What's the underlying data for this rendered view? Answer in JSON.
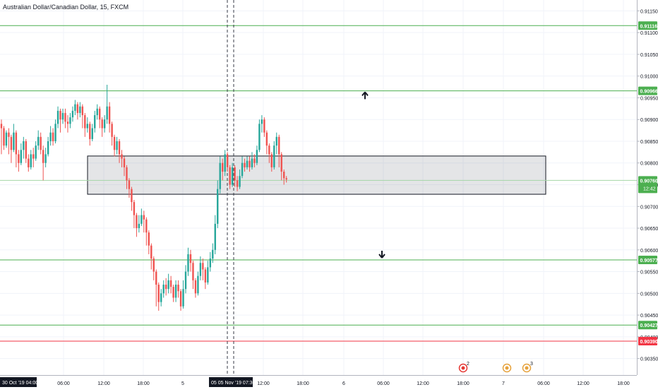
{
  "chart_data": {
    "type": "candlestick",
    "title": "Australian Dollar/Canadian Dollar, 15, FXCM",
    "ylim": [
      0.90312,
      0.91175
    ],
    "y_ticks": [
      "0.91150",
      "0.91100",
      "0.91050",
      "0.91000",
      "0.90950",
      "0.90900",
      "0.90850",
      "0.90800",
      "0.90750",
      "0.90700",
      "0.90650",
      "0.90600",
      "0.90550",
      "0.90500",
      "0.90450",
      "0.90400",
      "0.90350"
    ],
    "x_ticks": [
      "06:00",
      "12:00",
      "18:00",
      "5",
      "12:00",
      "18:00",
      "6",
      "06:00",
      "12:00",
      "18:00",
      "7",
      "06:00",
      "12:00",
      "18:00"
    ],
    "x_left_label": "30 Oct '19   04:00",
    "x_crosshair_label": "05   05 Nov '19   07:30",
    "levels": [
      {
        "value": 0.91116,
        "label": "0.91116",
        "color": "#4caf50"
      },
      {
        "value": 0.90966,
        "label": "0.90966",
        "color": "#4caf50"
      },
      {
        "value": 0.90577,
        "label": "0.90577",
        "color": "#4caf50"
      },
      {
        "value": 0.90427,
        "label": "0.90427",
        "color": "#4caf50"
      },
      {
        "value": 0.9039,
        "label": "0.90390",
        "color": "#f23645"
      }
    ],
    "current_price": {
      "value": 0.9076,
      "label": "0.90760",
      "countdown": "12:42",
      "color": "#4caf50"
    },
    "zone": {
      "top": 0.90816,
      "bottom": 0.90728
    },
    "arrows": [
      {
        "direction": "up",
        "value": 0.90955
      },
      {
        "direction": "down",
        "value": 0.9059
      }
    ],
    "events": [
      {
        "count": "2",
        "color": "#e53935"
      },
      {
        "count": "",
        "color": "#e6a23c"
      },
      {
        "count": "3",
        "color": "#e6a23c"
      }
    ],
    "up_color": "#26a69a",
    "down_color": "#ef5350",
    "candles": [
      [
        0.9089,
        0.9088,
        0.909,
        0.9082
      ],
      [
        0.9088,
        0.9084,
        0.90885,
        0.9083
      ],
      [
        0.9084,
        0.9087,
        0.90875,
        0.90835
      ],
      [
        0.9087,
        0.9086,
        0.9088,
        0.9082
      ],
      [
        0.9086,
        0.9083,
        0.90865,
        0.908
      ],
      [
        0.9083,
        0.9087,
        0.9089,
        0.90825
      ],
      [
        0.9087,
        0.9082,
        0.90875,
        0.9079
      ],
      [
        0.9082,
        0.908,
        0.9083,
        0.9078
      ],
      [
        0.908,
        0.9083,
        0.90845,
        0.90795
      ],
      [
        0.9083,
        0.9085,
        0.9086,
        0.9081
      ],
      [
        0.9085,
        0.9081,
        0.90855,
        0.908
      ],
      [
        0.9081,
        0.9079,
        0.9082,
        0.9078
      ],
      [
        0.9079,
        0.9082,
        0.9083,
        0.90785
      ],
      [
        0.9082,
        0.9081,
        0.90835,
        0.9079
      ],
      [
        0.9081,
        0.9084,
        0.9085,
        0.90805
      ],
      [
        0.9084,
        0.9086,
        0.90875,
        0.9083
      ],
      [
        0.9086,
        0.9083,
        0.9087,
        0.9082
      ],
      [
        0.9083,
        0.908,
        0.9084,
        0.9076
      ],
      [
        0.908,
        0.9082,
        0.90835,
        0.9079
      ],
      [
        0.9082,
        0.9085,
        0.9086,
        0.90815
      ],
      [
        0.9085,
        0.9087,
        0.90885,
        0.9084
      ],
      [
        0.9087,
        0.9085,
        0.9088,
        0.9084
      ],
      [
        0.9085,
        0.9089,
        0.909,
        0.90845
      ],
      [
        0.9089,
        0.9092,
        0.9093,
        0.9088
      ],
      [
        0.9092,
        0.909,
        0.90925,
        0.9087
      ],
      [
        0.909,
        0.90915,
        0.90925,
        0.9089
      ],
      [
        0.90915,
        0.90895,
        0.90925,
        0.9088
      ],
      [
        0.90895,
        0.9089,
        0.9091,
        0.9087
      ],
      [
        0.9089,
        0.90905,
        0.90915,
        0.9088
      ],
      [
        0.90905,
        0.9092,
        0.9093,
        0.90895
      ],
      [
        0.9092,
        0.90935,
        0.90945,
        0.9091
      ],
      [
        0.90935,
        0.90915,
        0.9094,
        0.909
      ],
      [
        0.90915,
        0.9093,
        0.9094,
        0.90905
      ],
      [
        0.9093,
        0.9091,
        0.90935,
        0.9088
      ],
      [
        0.9091,
        0.9088,
        0.90915,
        0.9086
      ],
      [
        0.9088,
        0.9089,
        0.90905,
        0.9087
      ],
      [
        0.9089,
        0.90855,
        0.90895,
        0.9084
      ],
      [
        0.90855,
        0.9088,
        0.9089,
        0.9085
      ],
      [
        0.9088,
        0.9091,
        0.9092,
        0.9087
      ],
      [
        0.9091,
        0.90925,
        0.90935,
        0.909
      ],
      [
        0.90925,
        0.909,
        0.9093,
        0.9088
      ],
      [
        0.909,
        0.9088,
        0.90905,
        0.9086
      ],
      [
        0.9088,
        0.909,
        0.9091,
        0.9087
      ],
      [
        0.909,
        0.9093,
        0.9098,
        0.9089
      ],
      [
        0.9093,
        0.9089,
        0.9094,
        0.9087
      ],
      [
        0.9089,
        0.9086,
        0.90895,
        0.9084
      ],
      [
        0.9086,
        0.9083,
        0.90865,
        0.90815
      ],
      [
        0.9083,
        0.9085,
        0.9086,
        0.9082
      ],
      [
        0.9085,
        0.9082,
        0.90855,
        0.908
      ],
      [
        0.9082,
        0.9081,
        0.9083,
        0.9079
      ],
      [
        0.9081,
        0.9079,
        0.90815,
        0.9077
      ],
      [
        0.9079,
        0.9076,
        0.90795,
        0.9074
      ],
      [
        0.9076,
        0.9074,
        0.90765,
        0.9072
      ],
      [
        0.9074,
        0.9071,
        0.90745,
        0.9069
      ],
      [
        0.9071,
        0.9068,
        0.90715,
        0.9065
      ],
      [
        0.9068,
        0.9065,
        0.90685,
        0.9063
      ],
      [
        0.9065,
        0.9066,
        0.9068,
        0.9064
      ],
      [
        0.9066,
        0.9068,
        0.90695,
        0.90655
      ],
      [
        0.9068,
        0.9067,
        0.9069,
        0.9064
      ],
      [
        0.9067,
        0.9064,
        0.90675,
        0.9061
      ],
      [
        0.9064,
        0.9061,
        0.90645,
        0.9059
      ],
      [
        0.9061,
        0.9058,
        0.90615,
        0.90555
      ],
      [
        0.9058,
        0.9055,
        0.90585,
        0.9053
      ],
      [
        0.9055,
        0.9052,
        0.90555,
        0.9047
      ],
      [
        0.9052,
        0.9048,
        0.90525,
        0.9046
      ],
      [
        0.9048,
        0.905,
        0.9051,
        0.9047
      ],
      [
        0.905,
        0.9052,
        0.9053,
        0.9049
      ],
      [
        0.9052,
        0.9051,
        0.90535,
        0.90495
      ],
      [
        0.9051,
        0.9053,
        0.90545,
        0.905
      ],
      [
        0.9053,
        0.90515,
        0.9054,
        0.905
      ],
      [
        0.90515,
        0.9049,
        0.9052,
        0.9048
      ],
      [
        0.9049,
        0.9052,
        0.9053,
        0.9048
      ],
      [
        0.9052,
        0.90505,
        0.9053,
        0.9049
      ],
      [
        0.90505,
        0.9047,
        0.9051,
        0.9046
      ],
      [
        0.9047,
        0.9051,
        0.9053,
        0.90465
      ],
      [
        0.9051,
        0.9055,
        0.90565,
        0.905
      ],
      [
        0.9055,
        0.9059,
        0.90605,
        0.9054
      ],
      [
        0.9059,
        0.9057,
        0.906,
        0.9055
      ],
      [
        0.9057,
        0.9053,
        0.90575,
        0.9051
      ],
      [
        0.9053,
        0.905,
        0.90535,
        0.9049
      ],
      [
        0.905,
        0.9054,
        0.9055,
        0.90495
      ],
      [
        0.9054,
        0.9057,
        0.90585,
        0.9053
      ],
      [
        0.9057,
        0.90555,
        0.9058,
        0.9053
      ],
      [
        0.90555,
        0.90525,
        0.9056,
        0.9051
      ],
      [
        0.90525,
        0.9056,
        0.90575,
        0.9052
      ],
      [
        0.9056,
        0.9058,
        0.90595,
        0.9055
      ],
      [
        0.9058,
        0.906,
        0.90615,
        0.9057
      ],
      [
        0.906,
        0.9066,
        0.9068,
        0.9059
      ],
      [
        0.9066,
        0.9074,
        0.9076,
        0.9065
      ],
      [
        0.9074,
        0.908,
        0.90815,
        0.9073
      ],
      [
        0.908,
        0.9078,
        0.9081,
        0.9076
      ],
      [
        0.9078,
        0.9082,
        0.9083,
        0.9077
      ],
      [
        0.9082,
        0.9079,
        0.90825,
        0.9078
      ],
      [
        0.9079,
        0.9075,
        0.90795,
        0.9074
      ],
      [
        0.9075,
        0.9079,
        0.908,
        0.90745
      ],
      [
        0.9079,
        0.9076,
        0.90795,
        0.90745
      ],
      [
        0.9076,
        0.90745,
        0.9077,
        0.90735
      ],
      [
        0.90745,
        0.9077,
        0.90785,
        0.9074
      ],
      [
        0.9077,
        0.908,
        0.90815,
        0.90765
      ],
      [
        0.908,
        0.9079,
        0.9081,
        0.9078
      ],
      [
        0.9079,
        0.90805,
        0.90815,
        0.90785
      ],
      [
        0.90805,
        0.9079,
        0.90815,
        0.9078
      ],
      [
        0.9079,
        0.9081,
        0.90825,
        0.90785
      ],
      [
        0.9081,
        0.908,
        0.9082,
        0.9079
      ],
      [
        0.908,
        0.9083,
        0.9084,
        0.90795
      ],
      [
        0.9083,
        0.9089,
        0.909,
        0.90825
      ],
      [
        0.9089,
        0.909,
        0.9091,
        0.9087
      ],
      [
        0.909,
        0.9087,
        0.90905,
        0.9086
      ],
      [
        0.9087,
        0.9084,
        0.90875,
        0.9082
      ],
      [
        0.9084,
        0.9082,
        0.90845,
        0.908
      ],
      [
        0.9082,
        0.9079,
        0.90825,
        0.9078
      ],
      [
        0.9079,
        0.9084,
        0.9085,
        0.90785
      ],
      [
        0.9084,
        0.9086,
        0.9087,
        0.9082
      ],
      [
        0.9086,
        0.9082,
        0.90865,
        0.9079
      ],
      [
        0.9082,
        0.9078,
        0.90825,
        0.9076
      ],
      [
        0.9078,
        0.90765,
        0.90785,
        0.9075
      ],
      [
        0.90765,
        0.90762,
        0.9077,
        0.90755
      ]
    ]
  }
}
